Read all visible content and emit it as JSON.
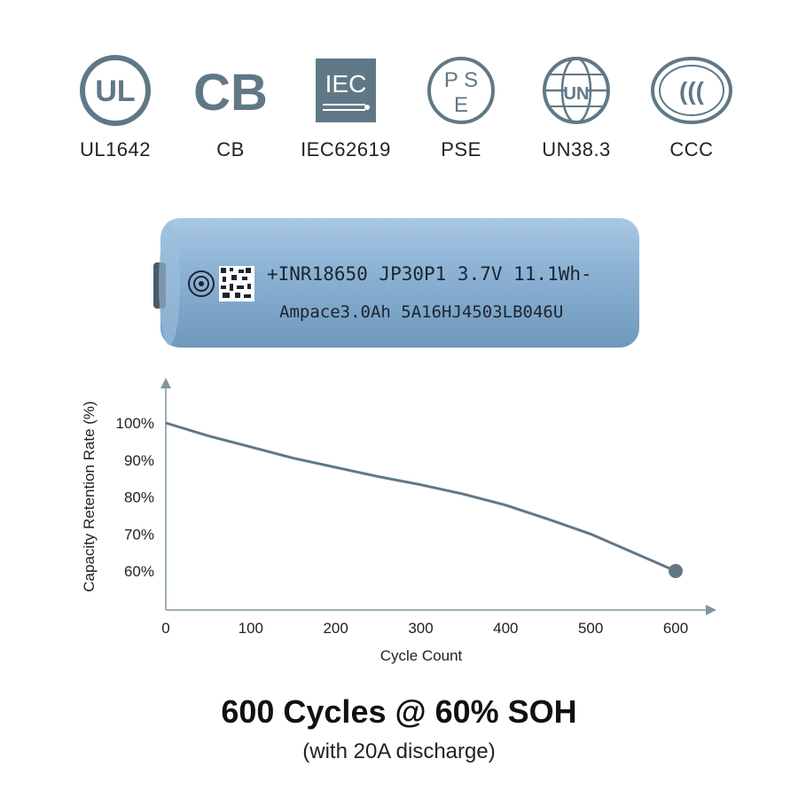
{
  "certifications": [
    {
      "label": "UL1642",
      "icon": "ul-logo-icon",
      "logo_text": "UL"
    },
    {
      "label": "CB",
      "icon": "cb-logo-icon",
      "logo_text": "CB"
    },
    {
      "label": "IEC62619",
      "icon": "iec-logo-icon",
      "logo_text": "IEC"
    },
    {
      "label": "PSE",
      "icon": "pse-logo-icon",
      "logo_text": "PSE"
    },
    {
      "label": "UN38.3",
      "icon": "un-logo-icon",
      "logo_text": "UN"
    },
    {
      "label": "CCC",
      "icon": "ccc-logo-icon",
      "logo_text": "CCC"
    }
  ],
  "battery": {
    "line1": "+INR18650 JP30P1 3.7V 11.1Wh-",
    "line2": "Ampace3.0Ah 5A16HJ4503LB046U",
    "body_color": "#8fb5d6"
  },
  "chart_data": {
    "type": "line",
    "xlabel": "Cycle Count",
    "ylabel": "Capacity Retention Rate (%)",
    "x_ticks": [
      "0",
      "100",
      "200",
      "300",
      "400",
      "500",
      "600"
    ],
    "y_ticks": [
      "100%",
      "90%",
      "80%",
      "70%",
      "60%"
    ],
    "xlim": [
      0,
      600
    ],
    "y_tick_values": [
      100,
      90,
      80,
      70,
      60
    ],
    "series": [
      {
        "x": [
          0,
          50,
          100,
          150,
          200,
          250,
          300,
          350,
          400,
          450,
          500,
          550,
          600
        ],
        "y": [
          100,
          96.5,
          93.5,
          90.5,
          88,
          85.5,
          83.3,
          80.8,
          77.8,
          74,
          70,
          65,
          60
        ]
      }
    ],
    "endpoint_marker": {
      "x": 600,
      "y": 60
    },
    "line_color": "#607886",
    "axis_color": "#8096a0"
  },
  "headline": "600 Cycles @ 60% SOH",
  "subline": "(with 20A discharge)"
}
